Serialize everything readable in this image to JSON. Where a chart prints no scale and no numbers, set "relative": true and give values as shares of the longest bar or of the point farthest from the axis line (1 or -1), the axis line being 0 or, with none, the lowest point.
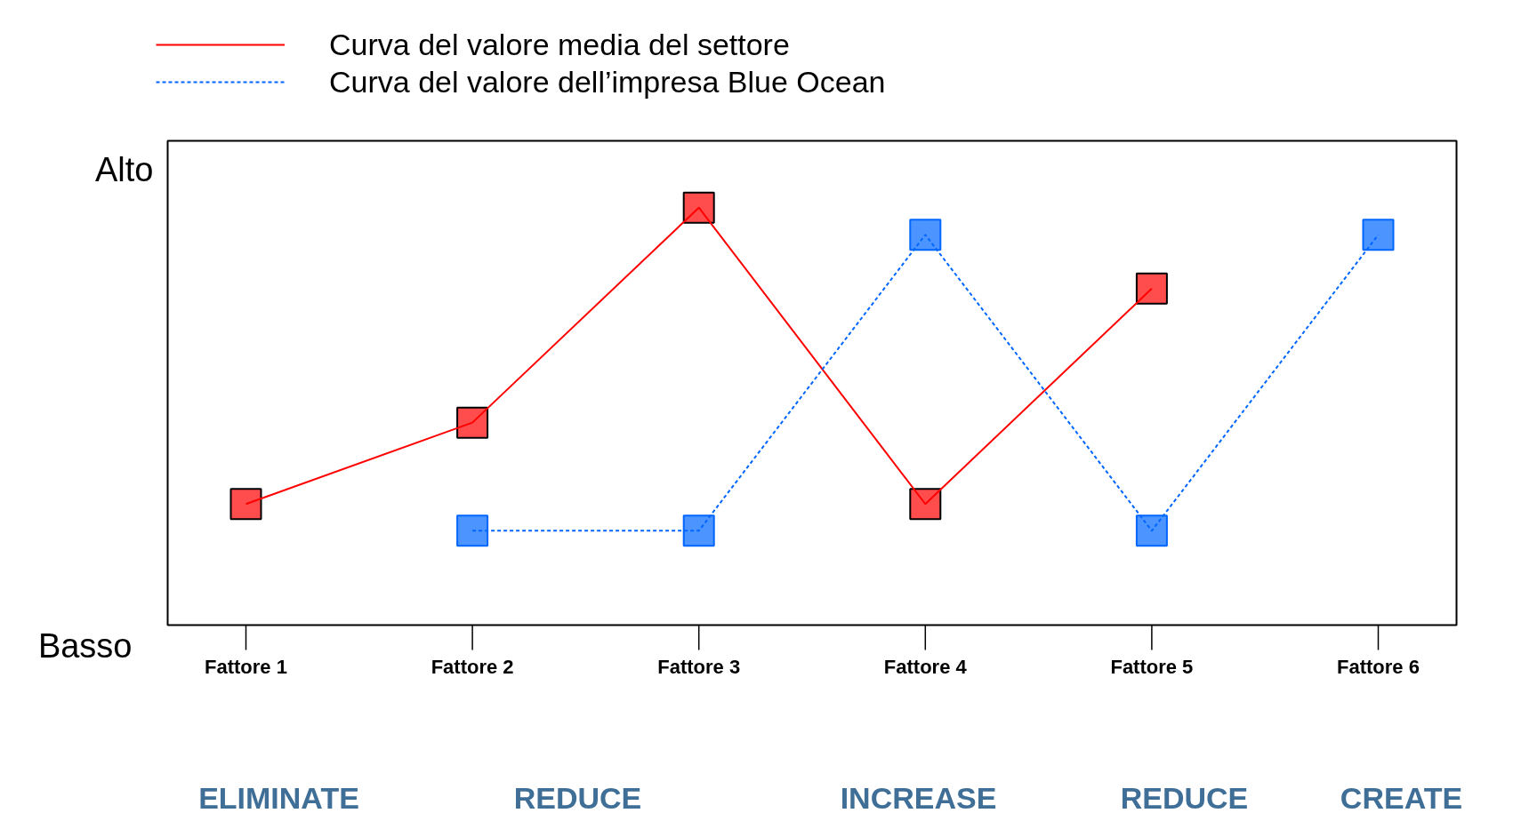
{
  "chart_data": {
    "type": "line",
    "relative": true,
    "marker": "square",
    "legend": "top left",
    "grid": false,
    "categories": [
      "Fattore 1",
      "Fattore 2",
      "Fattore 3",
      "Fattore 4",
      "Fattore 5",
      "Fattore 6"
    ],
    "series": [
      {
        "name": "Curva del valore media del settore",
        "color": "#ff0000",
        "line_style": "solid",
        "values": [
          0.29,
          0.485,
          1,
          0.29,
          0.806,
          null
        ]
      },
      {
        "name": "Curva del valore dell’impresa Blue Ocean",
        "color": "#0066ff",
        "line_style": "dashed",
        "values": [
          null,
          0.226,
          0.226,
          0.935,
          0.226,
          0.935
        ]
      }
    ],
    "annotations": [
      "Alto",
      "Basso",
      "ELIMINATE",
      "REDUCE",
      "INCREASE",
      "REDUCE",
      "CREATE"
    ]
  }
}
